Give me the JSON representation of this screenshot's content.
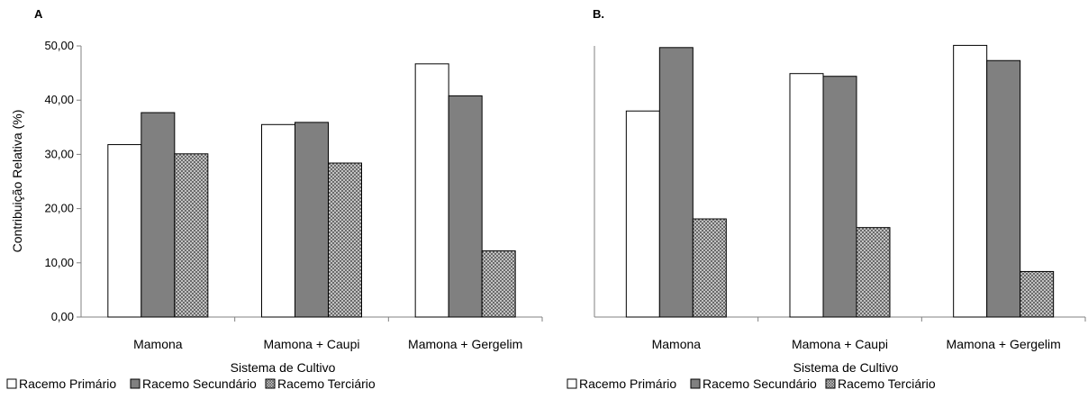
{
  "colors": {
    "primario": "#ffffff",
    "secundario": "#808080",
    "terciario": "#bfbfbf",
    "axis": "#808080",
    "bar_stroke": "#000000"
  },
  "chart_data": [
    {
      "type": "bar",
      "panel_label": "A",
      "categories": [
        "Mamona",
        "Mamona + Caupi",
        "Mamona + Gergelim"
      ],
      "series": [
        {
          "name": "Racemo Primário",
          "values": [
            31.8,
            35.5,
            46.7
          ]
        },
        {
          "name": "Racemo Secundário",
          "values": [
            37.7,
            35.9,
            40.8
          ]
        },
        {
          "name": "Racemo Terciário",
          "values": [
            30.1,
            28.4,
            12.2
          ]
        }
      ],
      "ylabel": "Contribuição Relativa (%)",
      "xlabel": "Sistema de Cultivo",
      "ylim": [
        0,
        50
      ],
      "yticks": [
        "0,00",
        "10,00",
        "20,00",
        "30,00",
        "40,00",
        "50,00"
      ],
      "grid": false,
      "legend": "bottom"
    },
    {
      "type": "bar",
      "panel_label": "B.",
      "categories": [
        "Mamona",
        "Mamona + Caupi",
        "Mamona + Gergelim"
      ],
      "series": [
        {
          "name": "Racemo Primário",
          "values": [
            38.0,
            44.9,
            50.1
          ]
        },
        {
          "name": "Racemo Secundário",
          "values": [
            49.7,
            44.4,
            47.3
          ]
        },
        {
          "name": "Racemo Terciário",
          "values": [
            18.1,
            16.5,
            8.4
          ]
        }
      ],
      "xlabel": "Sistema de Cultivo",
      "ylim": [
        0,
        50
      ],
      "grid": false,
      "legend": "bottom"
    }
  ]
}
